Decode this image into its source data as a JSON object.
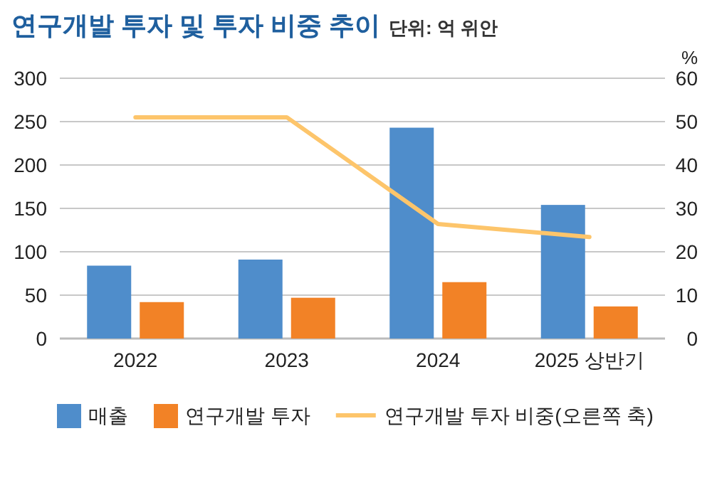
{
  "chart_data": {
    "type": "bar",
    "title": "연구개발 투자 및 투자 비중 추이",
    "subtitle": "단위: 억 위안",
    "categories": [
      "2022",
      "2023",
      "2024",
      "2025 상반기"
    ],
    "series": [
      {
        "name": "매출",
        "color": "#4f8dcb",
        "values": [
          84,
          91,
          243,
          154
        ]
      },
      {
        "name": "연구개발 투자",
        "color": "#f28226",
        "values": [
          42,
          47,
          65,
          37
        ]
      },
      {
        "name": "연구개발 투자 비중(오른쪽 축)",
        "type": "line",
        "axis": "y2",
        "color": "#fdc56b",
        "values": [
          51,
          51,
          26.4,
          23.4
        ]
      }
    ],
    "ylim": [
      0,
      300
    ],
    "yticks": [
      0,
      50,
      100,
      150,
      200,
      250,
      300
    ],
    "y2lim": [
      0,
      60
    ],
    "y2ticks": [
      0,
      10,
      20,
      30,
      40,
      50,
      60
    ],
    "y2label": "%",
    "grid": "y",
    "legend": "bottom"
  }
}
